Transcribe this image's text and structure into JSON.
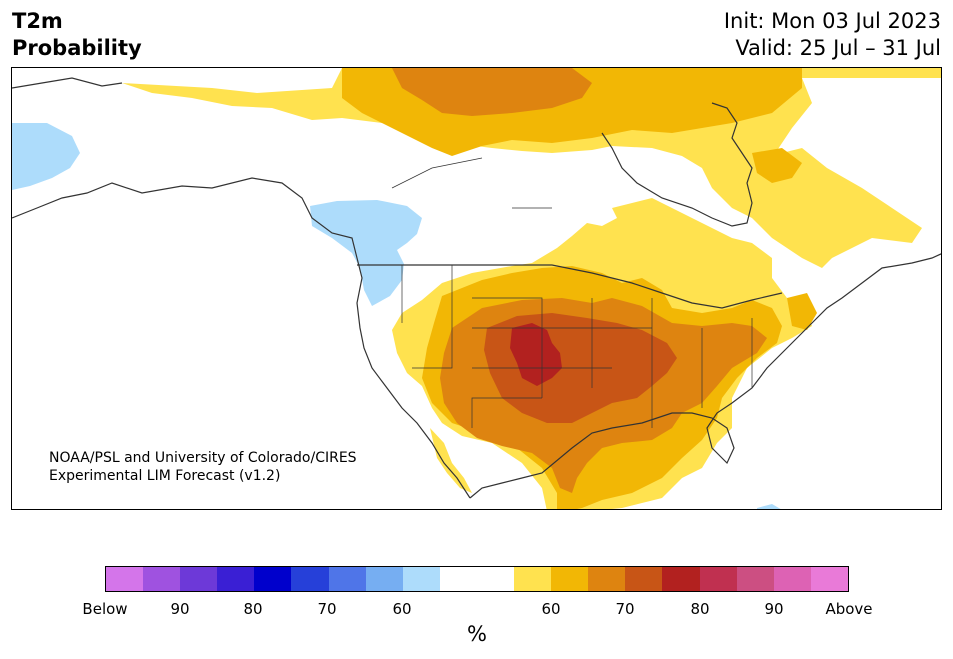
{
  "header": {
    "variable": "T2m",
    "subtitle": "Probability",
    "init": "Init: Mon 03 Jul 2023",
    "valid": "Valid: 25 Jul – 31 Jul"
  },
  "credit": {
    "line1": "NOAA/PSL and University of Colorado/CIRES",
    "line2": "Experimental LIM Forecast (v1.2)"
  },
  "colorbar": {
    "colors": [
      "#d475ea",
      "#9f52e0",
      "#6d39d8",
      "#3a1fd4",
      "#0000cc",
      "#2640d9",
      "#4f75e8",
      "#76aef2",
      "#addcfb",
      "#ffffff",
      "#ffffff",
      "#ffe24f",
      "#f2b705",
      "#de8410",
      "#c85516",
      "#b2211f",
      "#c03050",
      "#cc4f82",
      "#dd62b4",
      "#e97ad8"
    ],
    "tick_labels": [
      "Below",
      "90",
      "80",
      "70",
      "60",
      "60",
      "70",
      "80",
      "90",
      "Above"
    ],
    "unit": "%"
  },
  "map_colors": {
    "land": "#ffffff",
    "below_60": "#addcfb",
    "above_60": "#ffe24f",
    "above_65": "#f2b705",
    "above_70": "#de8410",
    "above_75": "#c85516",
    "above_80": "#b2211f",
    "outline": "#333333"
  }
}
